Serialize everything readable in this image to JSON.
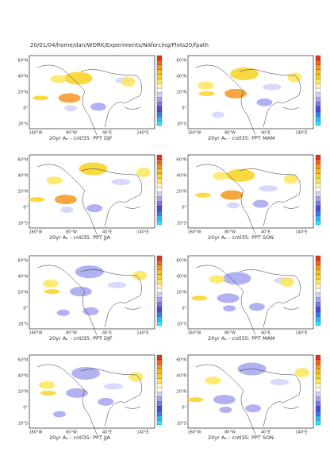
{
  "header": {
    "title": "20/01/04/home/dan/WORK/Experiments/NAforcing/Plots20/fpath"
  },
  "lat_labels": [
    "60°N",
    "40°N",
    "20°N",
    "0°",
    "20°S"
  ],
  "lon_labels": [
    "160°W",
    "80°W",
    "40°E",
    "140°E"
  ],
  "panels": [
    {
      "title": "20yr Aₑ - cntl35: PPT DJF"
    },
    {
      "title": "20yr Aₑ - cntl35: PPT MAM"
    },
    {
      "title": "20yr Aₑ - cntl35: PPT JJA"
    },
    {
      "title": "20yr Aₑ - cntl35: PPT SON"
    },
    {
      "title": "20yr Aₑ - cntl35: PPT DJF"
    },
    {
      "title": "20yr Aₑ - cntl35: PPT MAM"
    },
    {
      "title": "20yr Aₑ - cntl35: PPT JJA"
    },
    {
      "title": "20yr Aₑ - cntl35: PPT SON"
    }
  ]
}
